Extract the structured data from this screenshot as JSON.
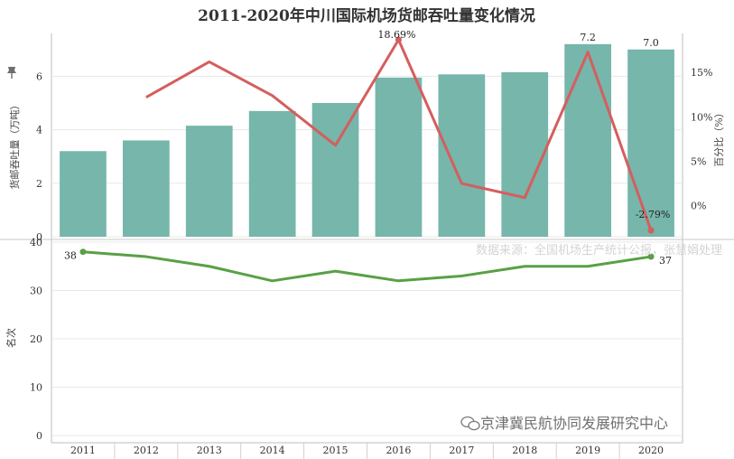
{
  "title": "2011-2020年中川国际机场货邮吞吐量变化情况",
  "source_note": "数据来源：全国机场生产统计公报，张慧娟处理",
  "watermark": "京津冀民航协同发展研究中心",
  "colors": {
    "bar": "#76b6ab",
    "growth_line": "#d55e5e",
    "rank_line": "#59a045",
    "grid": "#e8e8e8"
  },
  "icons": {
    "pin": "pin-icon",
    "wechat": "wechat-icon"
  },
  "chart_data": [
    {
      "type": "bar",
      "categories": [
        "2011",
        "2012",
        "2013",
        "2014",
        "2015",
        "2016",
        "2017",
        "2018",
        "2019",
        "2020"
      ],
      "values": [
        3.2,
        3.6,
        4.15,
        4.7,
        5.0,
        5.95,
        6.07,
        6.15,
        7.2,
        7.0
      ],
      "ylabel": "货邮吞吐量（万吨）",
      "ylim": [
        0,
        7.6
      ],
      "yticks": [
        "0",
        "2",
        "4",
        "6"
      ],
      "labels": [
        {
          "index": 8,
          "text": "7.2"
        },
        {
          "index": 9,
          "text": "7.0"
        }
      ]
    },
    {
      "type": "line",
      "categories": [
        "2012",
        "2013",
        "2014",
        "2015",
        "2016",
        "2017",
        "2018",
        "2019",
        "2020"
      ],
      "values": [
        12.2,
        16.2,
        12.4,
        6.8,
        18.69,
        2.5,
        0.9,
        17.3,
        -2.79
      ],
      "ylabel": "百分比（%）",
      "ylim": [
        -3.5,
        19.4
      ],
      "yticks": [
        "0%",
        "5%",
        "10%",
        "15%"
      ],
      "labels": [
        {
          "index": 4,
          "text": "18.69%"
        },
        {
          "index": 8,
          "text": "-2.79%"
        }
      ]
    },
    {
      "type": "line",
      "categories": [
        "2011",
        "2012",
        "2013",
        "2014",
        "2015",
        "2016",
        "2017",
        "2018",
        "2019",
        "2020"
      ],
      "values": [
        38,
        37,
        35,
        32,
        34,
        32,
        33,
        35,
        35,
        37
      ],
      "ylabel": "名次",
      "ylim": [
        0,
        40
      ],
      "yticks": [
        "0",
        "10",
        "20",
        "30",
        "40"
      ],
      "labels": [
        {
          "index": 0,
          "text": "38"
        },
        {
          "index": 9,
          "text": "37"
        }
      ]
    }
  ]
}
